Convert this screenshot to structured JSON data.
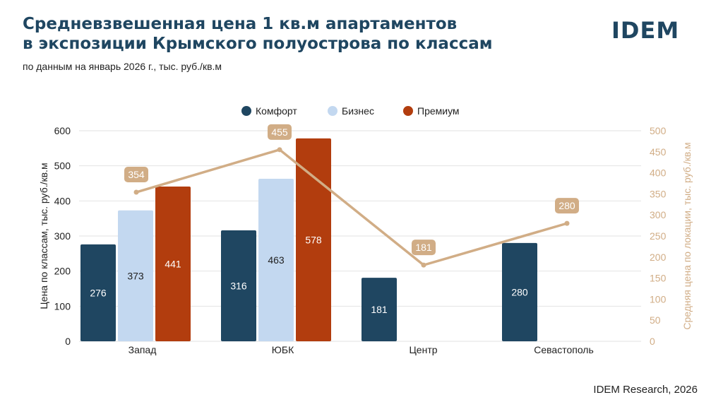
{
  "header": {
    "title_line1": "Средневзвешенная цена 1 кв.м апартаментов",
    "title_line2": "в экспозиции Крымского полуострова по классам",
    "subtitle": "по данным на январь 2026 г., тыс. руб./кв.м",
    "logo": "IDEM"
  },
  "footer": {
    "source": "IDEM Research, 2026"
  },
  "colors": {
    "comfort": "#1f4661",
    "business": "#c3d8f0",
    "premium": "#b23d0e",
    "line": "#d1ad86",
    "grid": "#e2e2e2"
  },
  "chart_data": {
    "type": "bar",
    "categories": [
      "Запад",
      "ЮБК",
      "Центр",
      "Севастополь"
    ],
    "series": [
      {
        "name": "Комфорт",
        "values": [
          276,
          316,
          181,
          280
        ],
        "labels": [
          "276",
          "316",
          "181",
          "280"
        ]
      },
      {
        "name": "Бизнес",
        "values": [
          373,
          463,
          null,
          null
        ],
        "labels": [
          "373",
          "463",
          "",
          ""
        ]
      },
      {
        "name": "Премиум",
        "values": [
          441,
          578,
          null,
          null
        ],
        "labels": [
          "441",
          "578",
          "",
          ""
        ]
      }
    ],
    "line_series": {
      "values": [
        354,
        455,
        181,
        280
      ],
      "labels": [
        "354",
        "455",
        "181",
        "280"
      ],
      "axis": "right"
    },
    "ylabel": "Цена по классам, тыс. руб./кв.м",
    "ylabel_right": "Средняя цена по локации, тыс. руб./кв.м",
    "ylim": [
      0,
      600
    ],
    "ylim_right": [
      0,
      500
    ],
    "yticks": [
      "0",
      "100",
      "200",
      "300",
      "400",
      "500",
      "600"
    ],
    "yticks_right": [
      "0",
      "50",
      "100",
      "150",
      "200",
      "250",
      "300",
      "350",
      "400",
      "450",
      "500"
    ],
    "grid": true,
    "legend": "top-center"
  }
}
